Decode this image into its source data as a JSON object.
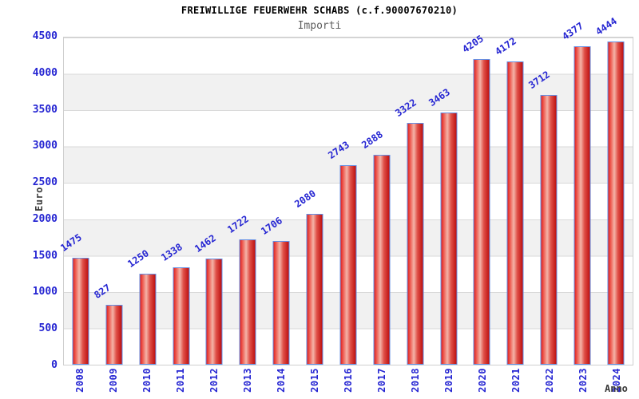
{
  "chart_data": {
    "type": "bar",
    "title": "FREIWILLIGE FEUERWEHR SCHABS (c.f.90007670210)",
    "subtitle": "Importi",
    "categories": [
      "2008",
      "2009",
      "2010",
      "2011",
      "2012",
      "2013",
      "2014",
      "2015",
      "2016",
      "2017",
      "2018",
      "2019",
      "2020",
      "2021",
      "2022",
      "2023",
      "2024"
    ],
    "values": [
      1475,
      827,
      1250,
      1338,
      1462,
      1722,
      1706,
      2080,
      2743,
      2888,
      3322,
      3463,
      4205,
      4172,
      3712,
      4377,
      4444
    ],
    "xlabel": "Anno",
    "ylabel": "Euro",
    "ylim": [
      0,
      4500
    ],
    "ytick_step": 500,
    "yticks": [
      0,
      500,
      1000,
      1500,
      2000,
      2500,
      3000,
      3500,
      4000,
      4500
    ],
    "grid": "horizontal gridlines every 500 with alternating white / light-gray bands",
    "legend": "none",
    "value_labels": "rotated blue numbers above each bar",
    "x_tick_label_orientation": "vertical",
    "bar_style": "red cylindrical gradient with light-blue border"
  },
  "colors": {
    "title": "#000000",
    "subtitle": "#5f5f5f",
    "label_blue": "#2525d2",
    "axis_title": "#3a3a3a",
    "plot_border": "#cfcfcf",
    "gridline": "#d9d9d9",
    "band_gray": "#f1f1f1",
    "bar_border": "#6390e6",
    "bar_red_edge": "#dd2222",
    "bar_red_light": "#f4b4a8",
    "bar_red_dark": "#bd1010"
  }
}
